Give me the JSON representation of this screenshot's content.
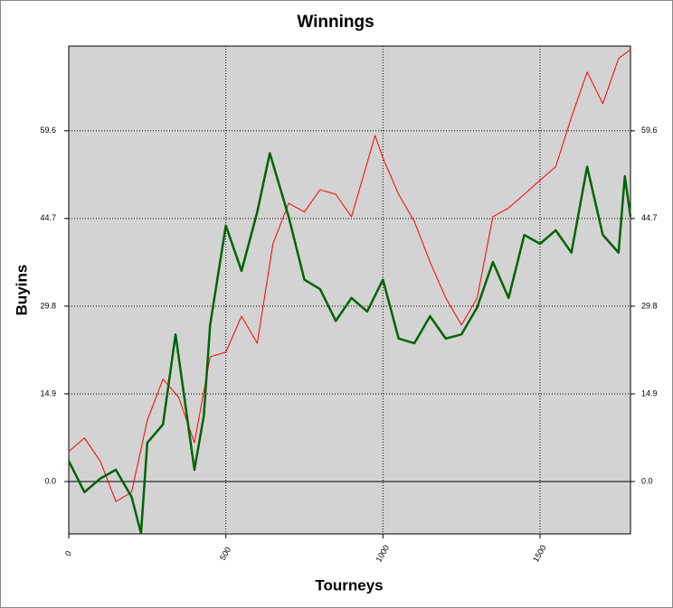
{
  "chart_data": {
    "type": "line",
    "title": "Winnings",
    "x_label": "Tourneys",
    "y_label": "Buyins",
    "xlim": [
      0,
      1788
    ],
    "ylim": [
      -8.9,
      74.0
    ],
    "xticks": [
      0,
      500,
      1000,
      1500
    ],
    "yticks": [
      {
        "value": 0,
        "label": "0.0"
      },
      14.9,
      29.8,
      44.7,
      59.6
    ],
    "grid": true,
    "plot_background": "#d3d3d3",
    "series": [
      {
        "color": "#ff0000",
        "width": 1,
        "x": [
          0,
          50,
          100,
          150,
          200,
          250,
          300,
          350,
          400,
          450,
          500,
          550,
          600,
          650,
          700,
          750,
          800,
          850,
          900,
          950,
          975,
          1000,
          1050,
          1100,
          1150,
          1200,
          1250,
          1300,
          1350,
          1400,
          1450,
          1500,
          1550,
          1600,
          1650,
          1700,
          1750,
          1788
        ],
        "values": [
          5.1,
          7.4,
          3.5,
          -3.4,
          -1.8,
          10.4,
          17.4,
          14.3,
          6.6,
          21.2,
          22,
          28.1,
          23.5,
          40.4,
          47.3,
          45.8,
          49.6,
          48.8,
          45,
          54.2,
          58.8,
          55,
          48.8,
          44.2,
          37.3,
          31.2,
          26.6,
          31.2,
          45,
          46.5,
          48.8,
          51.2,
          53.5,
          61.9,
          69.6,
          64.2,
          71.9,
          73.4
        ]
      },
      {
        "color": "#006400",
        "width": 2.5,
        "x": [
          0,
          50,
          100,
          150,
          200,
          230,
          250,
          300,
          340,
          400,
          430,
          450,
          500,
          550,
          600,
          640,
          700,
          750,
          800,
          850,
          900,
          950,
          1000,
          1050,
          1100,
          1150,
          1200,
          1250,
          1300,
          1350,
          1400,
          1450,
          1500,
          1550,
          1600,
          1650,
          1700,
          1750,
          1770,
          1788
        ],
        "values": [
          3.5,
          -1.8,
          0.5,
          2,
          -2.6,
          -8.8,
          6.6,
          9.7,
          25,
          2,
          11.2,
          26.6,
          43.5,
          35.8,
          45.8,
          55.8,
          45,
          34.3,
          32.7,
          27.3,
          31.2,
          28.9,
          34.3,
          24.3,
          23.5,
          28.1,
          24.3,
          25,
          29.6,
          37.3,
          31.2,
          41.9,
          40.4,
          42.7,
          38.9,
          53.5,
          41.9,
          38.9,
          51.9,
          45
        ]
      }
    ]
  }
}
